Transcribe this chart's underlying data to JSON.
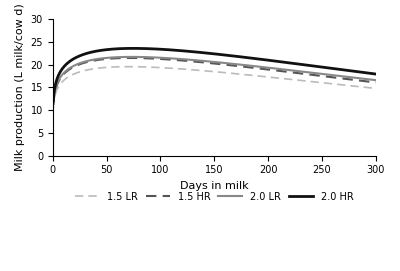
{
  "title": "",
  "xlabel": "Days in milk",
  "ylabel": "Milk production (L milk/cow d)",
  "xlim": [
    0,
    300
  ],
  "ylim": [
    0,
    30
  ],
  "xticks": [
    0,
    50,
    100,
    150,
    200,
    250,
    300
  ],
  "yticks": [
    0,
    5,
    10,
    15,
    20,
    25,
    30
  ],
  "lines": [
    {
      "label": "1.5 LR",
      "color": "#bbbbbb",
      "linestyle": "dashed",
      "linewidth": 1.2,
      "a": 11.8,
      "b": 0.155,
      "c": 0.0022
    },
    {
      "label": "1.5 HR",
      "color": "#555555",
      "linestyle": "dashed",
      "linewidth": 1.5,
      "a": 12.5,
      "b": 0.165,
      "c": 0.0023
    },
    {
      "label": "2.0 LR",
      "color": "#888888",
      "linestyle": "solid",
      "linewidth": 1.5,
      "a": 12.8,
      "b": 0.16,
      "c": 0.00218
    },
    {
      "label": "2.0 HR",
      "color": "#111111",
      "linestyle": "solid",
      "linewidth": 2.0,
      "a": 13.5,
      "b": 0.168,
      "c": 0.00225
    }
  ],
  "legend_loc": "lower center",
  "background_color": "#ffffff"
}
